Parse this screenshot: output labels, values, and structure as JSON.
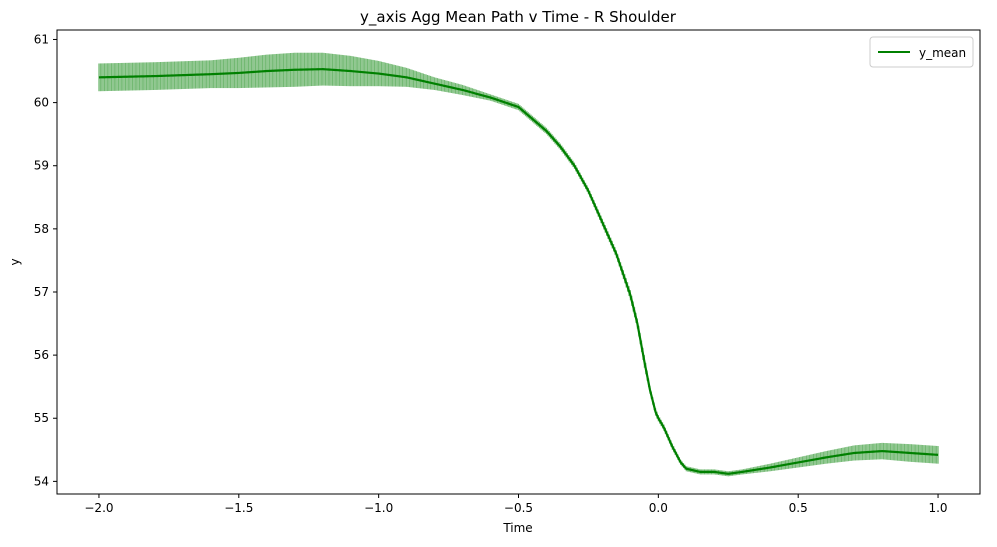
{
  "chart_data": {
    "type": "line",
    "title": "y_axis Agg Mean Path v Time - R Shoulder",
    "xlabel": "Time",
    "ylabel": "y",
    "xlim": [
      -2.15,
      1.15
    ],
    "ylim": [
      53.8,
      61.15
    ],
    "xticks": [
      -2.0,
      -1.5,
      -1.0,
      -0.5,
      0.0,
      0.5,
      1.0
    ],
    "xtick_labels": [
      "−2.0",
      "−1.5",
      "−1.0",
      "−0.5",
      "0.0",
      "0.5",
      "1.0"
    ],
    "yticks": [
      54,
      55,
      56,
      57,
      58,
      59,
      60,
      61
    ],
    "ytick_labels": [
      "54",
      "55",
      "56",
      "57",
      "58",
      "59",
      "60",
      "61"
    ],
    "grid": false,
    "legend": {
      "position": "top-right",
      "entries": [
        "y_mean"
      ]
    },
    "series": [
      {
        "name": "y_mean",
        "color": "#008000",
        "x": [
          -2.0,
          -1.8,
          -1.6,
          -1.5,
          -1.4,
          -1.3,
          -1.2,
          -1.1,
          -1.0,
          -0.9,
          -0.8,
          -0.7,
          -0.6,
          -0.5,
          -0.4,
          -0.35,
          -0.3,
          -0.25,
          -0.2,
          -0.15,
          -0.1,
          -0.075,
          -0.05,
          -0.03,
          -0.01,
          0.0,
          0.02,
          0.05,
          0.08,
          0.1,
          0.15,
          0.2,
          0.25,
          0.3,
          0.4,
          0.5,
          0.6,
          0.7,
          0.8,
          0.9,
          1.0
        ],
        "y": [
          60.4,
          60.42,
          60.45,
          60.47,
          60.5,
          60.52,
          60.53,
          60.5,
          60.46,
          60.4,
          60.3,
          60.2,
          60.08,
          59.93,
          59.55,
          59.3,
          59.0,
          58.6,
          58.1,
          57.6,
          56.95,
          56.5,
          55.9,
          55.45,
          55.1,
          55.0,
          54.85,
          54.55,
          54.3,
          54.2,
          54.15,
          54.15,
          54.12,
          54.15,
          54.22,
          54.3,
          54.38,
          54.45,
          54.48,
          54.45,
          54.42
        ],
        "errorbar_halfwidth": [
          0.22,
          0.22,
          0.22,
          0.24,
          0.26,
          0.27,
          0.26,
          0.24,
          0.2,
          0.15,
          0.1,
          0.08,
          0.05,
          0.05,
          0.05,
          0.05,
          0.05,
          0.05,
          0.06,
          0.06,
          0.08,
          0.08,
          0.1,
          0.06,
          0.06,
          0.05,
          0.05,
          0.05,
          0.04,
          0.04,
          0.04,
          0.04,
          0.04,
          0.04,
          0.06,
          0.08,
          0.1,
          0.12,
          0.13,
          0.14,
          0.14
        ]
      }
    ]
  }
}
